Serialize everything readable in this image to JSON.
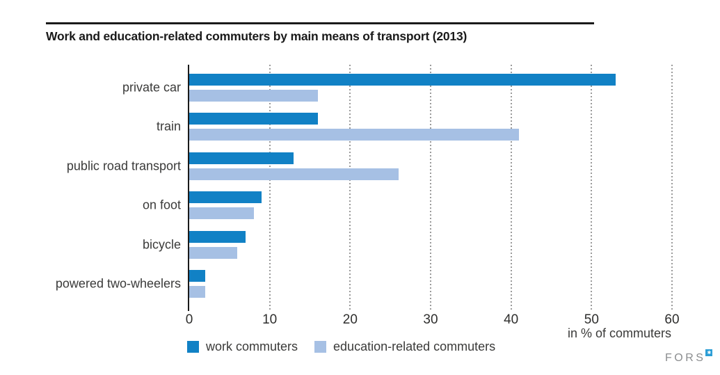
{
  "chart_data": {
    "type": "bar",
    "orientation": "horizontal",
    "title": "Work and education-related commuters by main means of transport (2013)",
    "categories": [
      "private car",
      "train",
      "public road transport",
      "on foot",
      "bicycle",
      "powered two-wheelers"
    ],
    "series": [
      {
        "name": "work commuters",
        "color": "#1181c5",
        "values": [
          53,
          16,
          13,
          9,
          7,
          2
        ]
      },
      {
        "name": "education-related commuters",
        "color": "#a6c0e4",
        "values": [
          16,
          41,
          26,
          8,
          6,
          2
        ]
      }
    ],
    "xticks": [
      0,
      10,
      20,
      30,
      40,
      50,
      60
    ],
    "xlim": [
      0,
      62
    ],
    "xlabel": "in % of commuters",
    "grid": "dotted-vertical",
    "legend_position": "bottom"
  },
  "branding": {
    "logo_text": "FORS",
    "logo_mark_glyph": "✱",
    "logo_mark_color": "#2d9ed6"
  }
}
